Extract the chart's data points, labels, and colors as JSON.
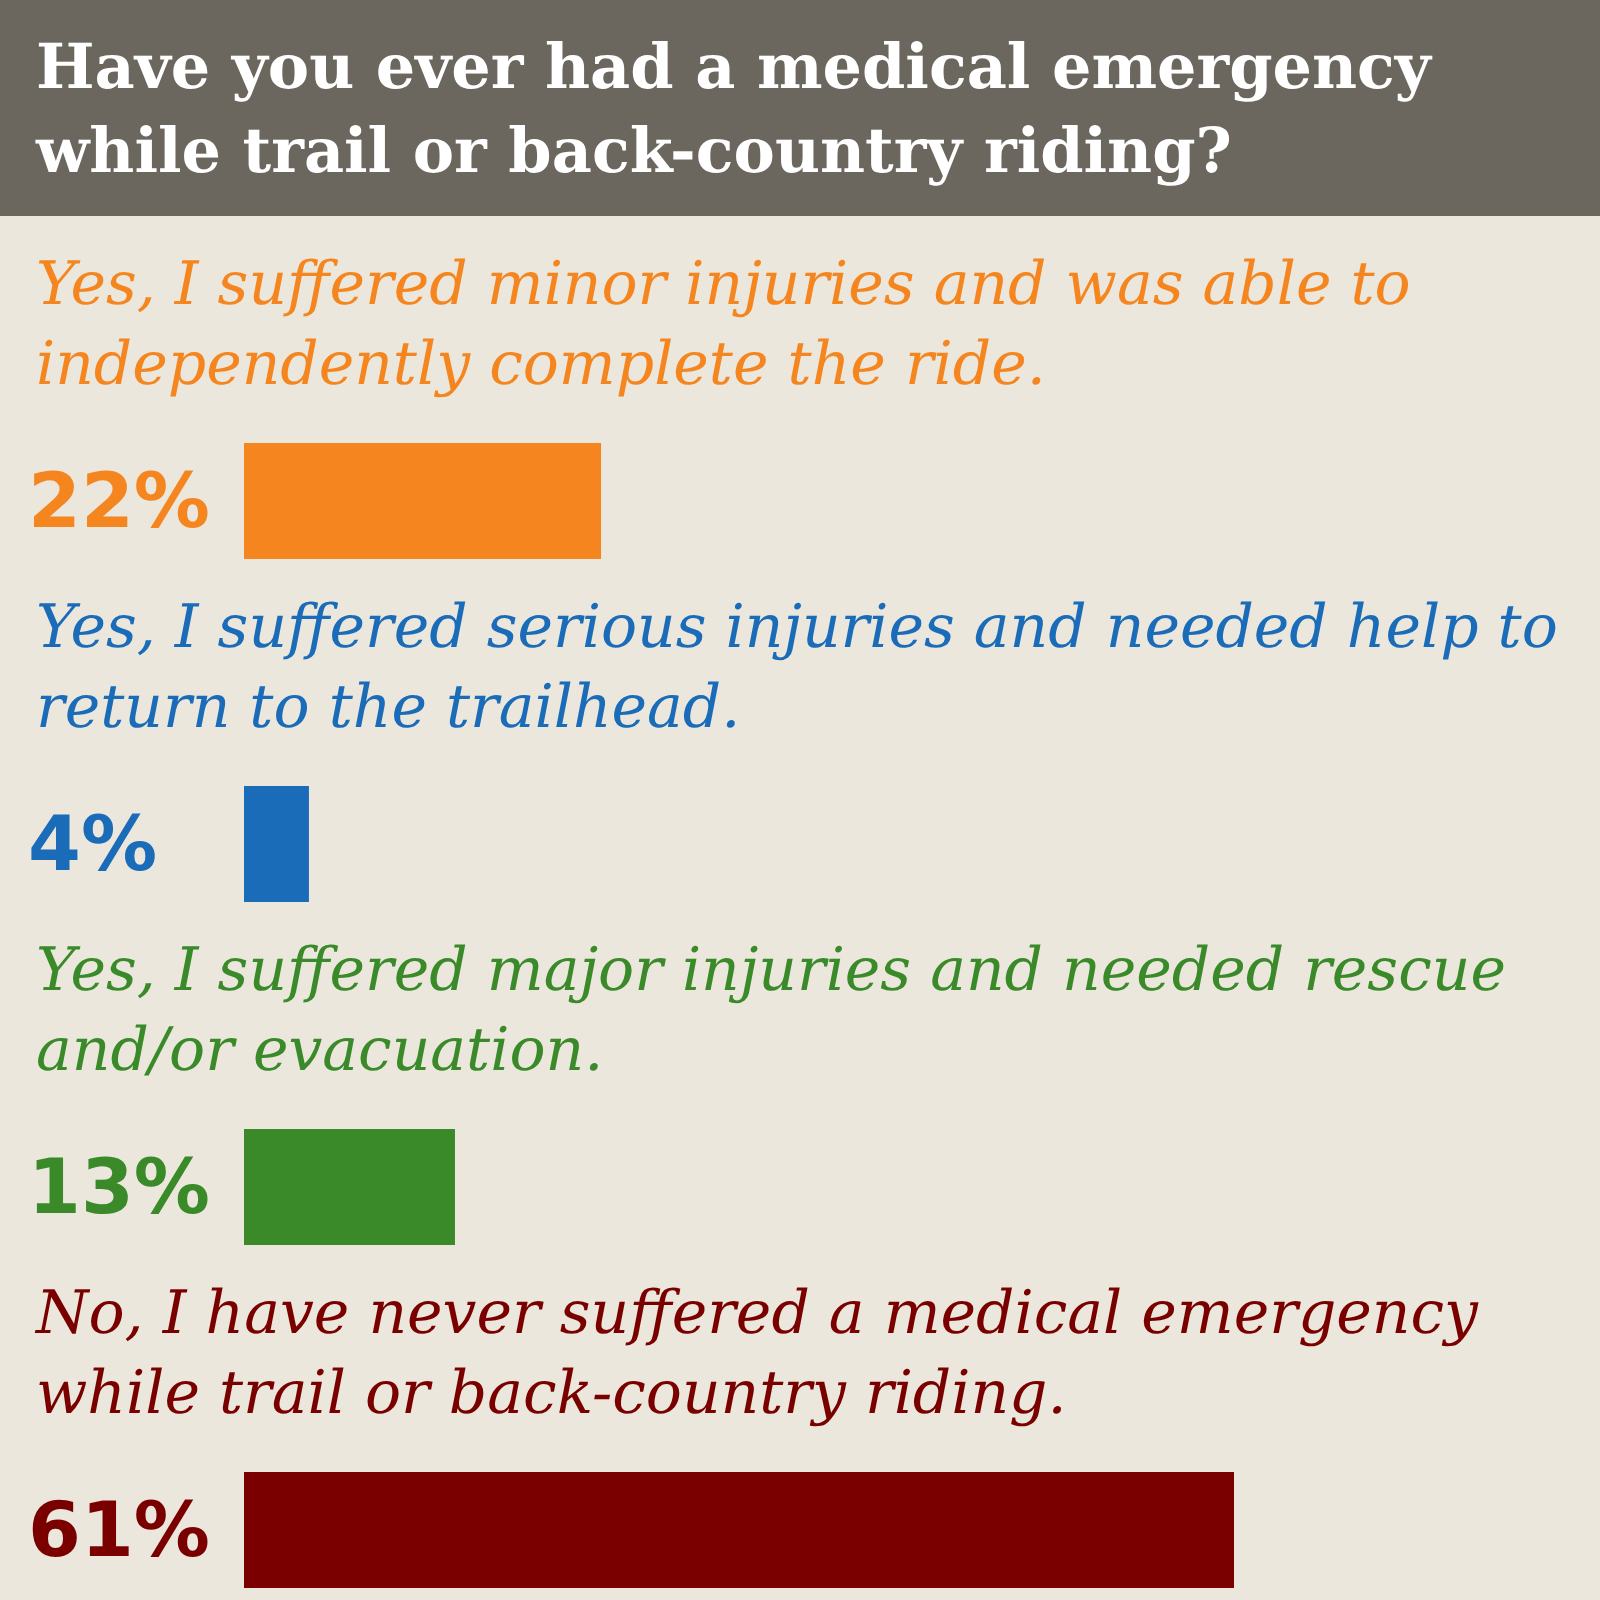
{
  "chart_data": {
    "type": "bar",
    "orientation": "horizontal",
    "title": "Have you ever had a medical emergency while trail or back-country riding?",
    "categories": [
      "Yes, I suffered minor injuries and was able to independently complete the ride.",
      "Yes, I suffered serious injuries and needed help to return to the trailhead.",
      "Yes, I suffered major injuries and needed rescue and/or evacuation.",
      "No, I have never suffered a medical emergency while trail or back-country riding."
    ],
    "values": [
      22,
      4,
      13,
      61
    ],
    "colors": [
      "#f5861f",
      "#1a6bb8",
      "#3a8a2a",
      "#7a0000"
    ],
    "value_labels": [
      "22%",
      "4%",
      "13%",
      "61%"
    ]
  }
}
